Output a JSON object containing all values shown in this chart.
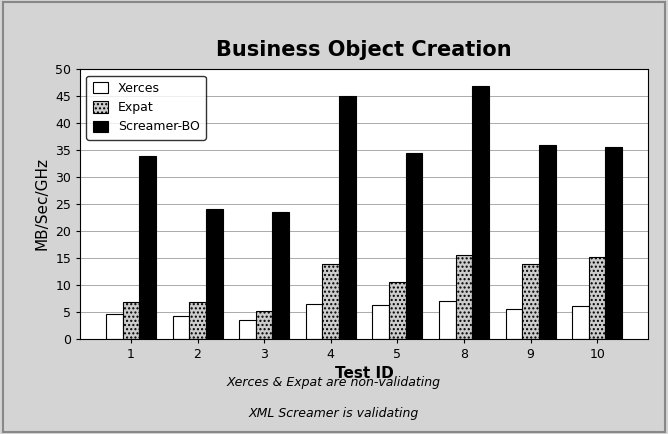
{
  "title": "Business Object Creation",
  "xlabel": "Test ID",
  "ylabel": "MB/Sec/GHz",
  "categories": [
    "1",
    "2",
    "3",
    "4",
    "5",
    "8",
    "9",
    "10"
  ],
  "xerces": [
    4.5,
    4.2,
    3.5,
    6.5,
    6.2,
    7.0,
    5.5,
    6.0
  ],
  "expat": [
    6.8,
    6.8,
    5.2,
    13.8,
    10.5,
    15.5,
    13.8,
    15.2
  ],
  "screamer": [
    34.0,
    24.0,
    23.5,
    45.0,
    34.5,
    47.0,
    36.0,
    35.5
  ],
  "ylim": [
    0,
    50
  ],
  "yticks": [
    0,
    5,
    10,
    15,
    20,
    25,
    30,
    35,
    40,
    45,
    50
  ],
  "xerces_color": "#ffffff",
  "expat_color": "#cccccc",
  "screamer_color": "#000000",
  "expat_hatch": "....",
  "bar_edgecolor": "#000000",
  "legend_labels": [
    "Xerces",
    "Expat",
    "Screamer-BO"
  ],
  "footnote_line1": "Xerces & Expat are non-validating",
  "footnote_line2": "XML Screamer is validating",
  "background_color": "#ffffff",
  "outer_bg_color": "#d4d4d4",
  "title_fontsize": 15,
  "axis_fontsize": 11,
  "tick_fontsize": 9,
  "legend_fontsize": 9,
  "footnote_fontsize": 9
}
